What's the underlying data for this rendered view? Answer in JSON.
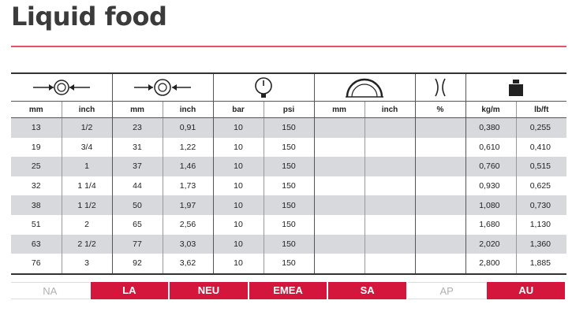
{
  "title": "Liquid food",
  "icons": {
    "inner_diameter": "inner-diameter-icon",
    "outer_diameter": "outer-diameter-icon",
    "pressure": "pressure-gauge-icon",
    "bend_radius": "bend-radius-icon",
    "vacuum": "vacuum-icon",
    "weight": "weight-icon"
  },
  "headers": [
    "mm",
    "inch",
    "mm",
    "inch",
    "bar",
    "psi",
    "mm",
    "inch",
    "%",
    "kg/m",
    "lb/ft"
  ],
  "rows": [
    [
      "13",
      "1/2",
      "23",
      "0,91",
      "10",
      "150",
      "",
      "",
      "",
      "0,380",
      "0,255"
    ],
    [
      "19",
      "3/4",
      "31",
      "1,22",
      "10",
      "150",
      "",
      "",
      "",
      "0,610",
      "0,410"
    ],
    [
      "25",
      "1",
      "37",
      "1,46",
      "10",
      "150",
      "",
      "",
      "",
      "0,760",
      "0,515"
    ],
    [
      "32",
      "1 1/4",
      "44",
      "1,73",
      "10",
      "150",
      "",
      "",
      "",
      "0,930",
      "0,625"
    ],
    [
      "38",
      "1 1/2",
      "50",
      "1,97",
      "10",
      "150",
      "",
      "",
      "",
      "1,080",
      "0,730"
    ],
    [
      "51",
      "2",
      "65",
      "2,56",
      "10",
      "150",
      "",
      "",
      "",
      "1,680",
      "1,130"
    ],
    [
      "63",
      "2 1/2",
      "77",
      "3,03",
      "10",
      "150",
      "",
      "",
      "",
      "2,020",
      "1,360"
    ],
    [
      "76",
      "3",
      "92",
      "3,62",
      "10",
      "150",
      "",
      "",
      "",
      "2,800",
      "1,885"
    ]
  ],
  "regions": [
    {
      "label": "NA",
      "active": false
    },
    {
      "label": "LA",
      "active": true
    },
    {
      "label": "NEU",
      "active": true
    },
    {
      "label": "EMEA",
      "active": true
    },
    {
      "label": "SA",
      "active": true
    },
    {
      "label": "AP",
      "active": false
    },
    {
      "label": "AU",
      "active": true
    }
  ],
  "colors": {
    "accent": "#d4163c",
    "title": "#3b3b3b",
    "stripe": "#d7d9dc"
  }
}
